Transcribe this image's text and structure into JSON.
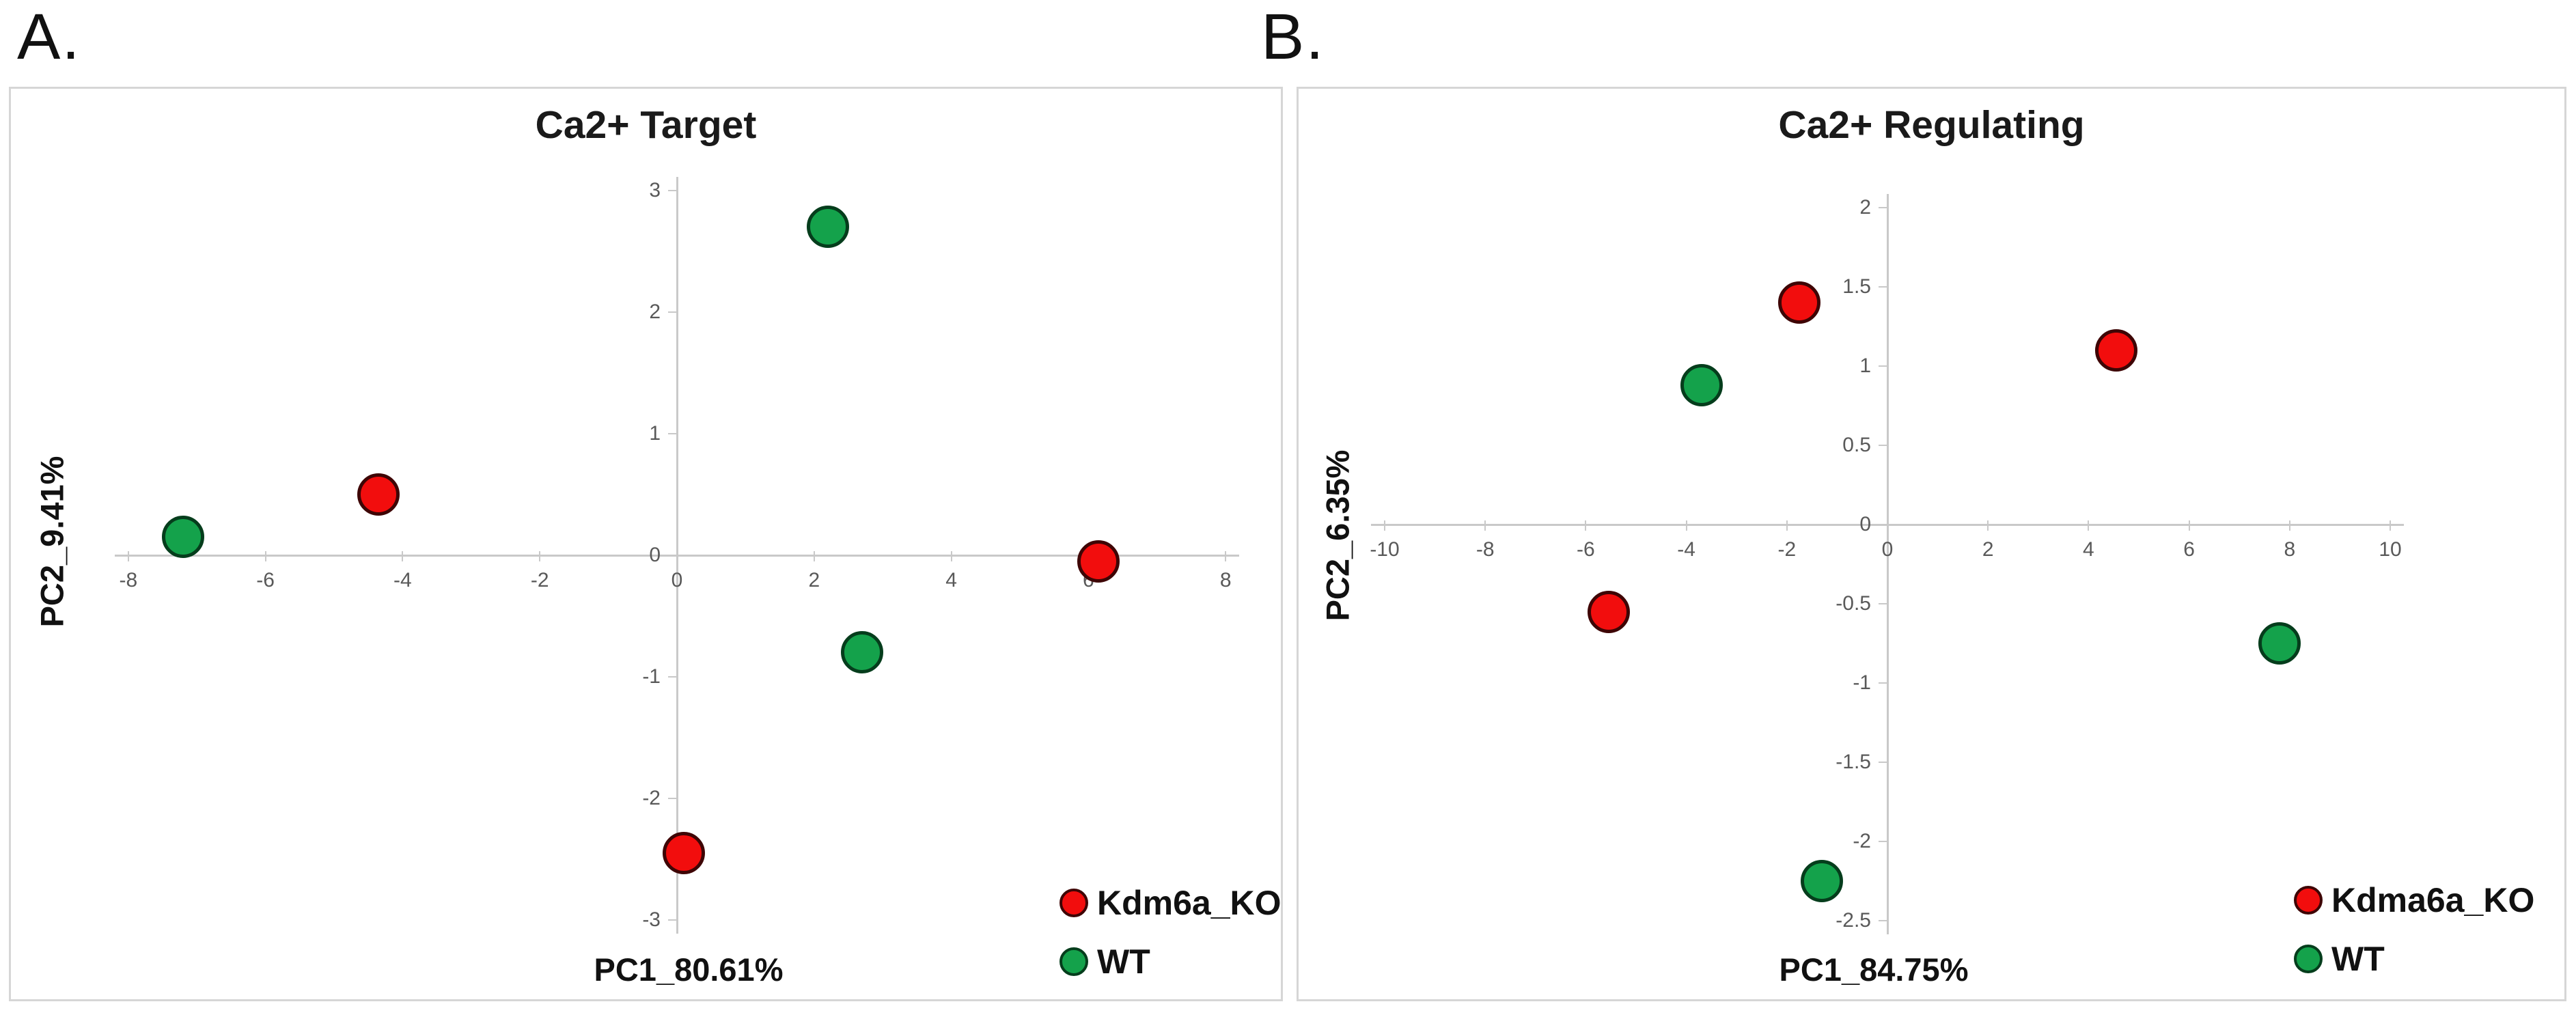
{
  "figure": {
    "panel_labels": [
      "A.",
      "B."
    ]
  },
  "chart_data": [
    {
      "panel": "A",
      "type": "scatter",
      "title": "Ca2+ Target",
      "xlabel": "PC1_80.61%",
      "ylabel": "PC2_9.41%",
      "xlim": [
        -8,
        8
      ],
      "ylim": [
        -3,
        3
      ],
      "x_ticks": [
        -8,
        -6,
        -4,
        -2,
        0,
        2,
        4,
        6,
        8
      ],
      "y_ticks": [
        3,
        2,
        1,
        0,
        -1,
        -2,
        -3
      ],
      "grid": false,
      "legend_position": "bottom-right",
      "series": [
        {
          "name": "Kdm6a_KO",
          "color": "#f20d0d",
          "marker_edge": "#3e0505",
          "points": [
            [
              -4.35,
              0.5
            ],
            [
              6.15,
              -0.05
            ],
            [
              0.1,
              -2.45
            ]
          ]
        },
        {
          "name": "WT",
          "color": "#14a24b",
          "marker_edge": "#053d1c",
          "points": [
            [
              2.2,
              2.7
            ],
            [
              -7.2,
              0.15
            ],
            [
              2.7,
              -0.8
            ]
          ]
        }
      ]
    },
    {
      "panel": "B",
      "type": "scatter",
      "title": "Ca2+ Regulating",
      "xlabel": "PC1_84.75%",
      "ylabel": "PC2_6.35%",
      "xlim": [
        -10,
        10
      ],
      "ylim": [
        -2.5,
        2
      ],
      "x_ticks": [
        -10,
        -8,
        -6,
        -4,
        -2,
        0,
        2,
        4,
        6,
        8,
        10
      ],
      "y_ticks": [
        2,
        1.5,
        1,
        0.5,
        0,
        -0.5,
        -1,
        -1.5,
        -2,
        -2.5
      ],
      "grid": false,
      "legend_position": "bottom-right",
      "series": [
        {
          "name": "Kdma6a_KO",
          "color": "#f20d0d",
          "marker_edge": "#3e0505",
          "points": [
            [
              -1.75,
              1.4
            ],
            [
              4.55,
              1.1
            ],
            [
              -5.55,
              -0.55
            ]
          ]
        },
        {
          "name": "WT",
          "color": "#14a24b",
          "marker_edge": "#053d1c",
          "points": [
            [
              -3.7,
              0.88
            ],
            [
              7.8,
              -0.75
            ],
            [
              -1.3,
              -2.25
            ]
          ]
        }
      ]
    }
  ]
}
